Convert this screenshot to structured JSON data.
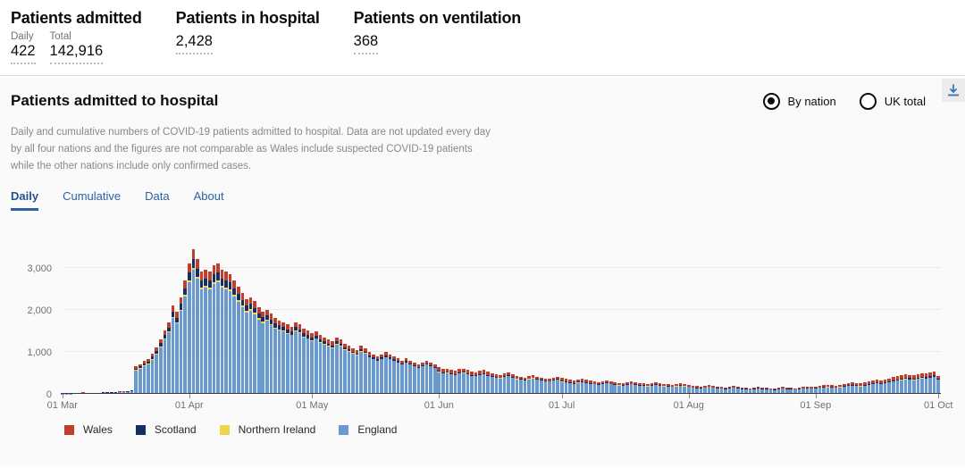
{
  "stats": {
    "admitted": {
      "title": "Patients admitted",
      "daily_label": "Daily",
      "total_label": "Total",
      "daily_value": "422",
      "total_value": "142,916"
    },
    "in_hospital": {
      "title": "Patients in hospital",
      "value": "2,428"
    },
    "ventilation": {
      "title": "Patients on ventilation",
      "value": "368"
    }
  },
  "panel": {
    "title": "Patients admitted to hospital",
    "radio_options": [
      {
        "label": "By nation",
        "selected": true
      },
      {
        "label": "UK total",
        "selected": false
      }
    ],
    "description": "Daily and cumulative numbers of COVID-19 patients admitted to hospital. Data are not updated every day by all four nations and the figures are not comparable as Wales include suspected COVID-19 patients while the other nations include only confirmed cases.",
    "tabs": [
      {
        "label": "Daily",
        "active": true
      },
      {
        "label": "Cumulative",
        "active": false
      },
      {
        "label": "Data",
        "active": false
      },
      {
        "label": "About",
        "active": false
      }
    ],
    "download_icon": "download-icon"
  },
  "colors": {
    "accent_blue": "#2c62a5",
    "download_blue": "#3b74ba",
    "england": "#6A99D0",
    "northern_ireland": "#F2D24B",
    "scotland": "#152F63",
    "wales": "#C13E2B"
  },
  "chart_data": {
    "type": "bar",
    "stacked": true,
    "title": "Daily COVID-19 patients admitted to hospital, by nation",
    "x_start": "01 Mar",
    "x_end": "01 Oct",
    "frequency": "daily",
    "grid": "horizontal",
    "legend_position": "bottom",
    "ylim": [
      0,
      3500
    ],
    "y_ticks": [
      {
        "label": "0",
        "value": 0
      },
      {
        "label": "1,000",
        "value": 1000
      },
      {
        "label": "2,000",
        "value": 2000
      },
      {
        "label": "3,000",
        "value": 3000
      }
    ],
    "x_ticks": [
      {
        "label": "01 Mar",
        "day": 0
      },
      {
        "label": "01 Apr",
        "day": 31
      },
      {
        "label": "01 May",
        "day": 61
      },
      {
        "label": "01 Jun",
        "day": 92
      },
      {
        "label": "01 Jul",
        "day": 122
      },
      {
        "label": "01 Aug",
        "day": 153
      },
      {
        "label": "01 Sep",
        "day": 184
      },
      {
        "label": "01 Oct",
        "day": 214
      }
    ],
    "legend_order": [
      3,
      2,
      1,
      0
    ],
    "series": [
      {
        "name": "England",
        "color": "#6A99D0",
        "values": [
          3,
          5,
          6,
          15,
          18,
          21,
          18,
          12,
          15,
          18,
          25,
          27,
          25,
          30,
          34,
          37,
          43,
          54,
          555,
          600,
          665,
          700,
          815,
          940,
          1110,
          1285,
          1455,
          1800,
          1670,
          1965,
          2310,
          2655,
          2945,
          2735,
          2480,
          2525,
          2485,
          2610,
          2655,
          2525,
          2485,
          2445,
          2315,
          2190,
          2060,
          1935,
          1980,
          1895,
          1765,
          1685,
          1730,
          1640,
          1555,
          1515,
          1475,
          1430,
          1390,
          1475,
          1435,
          1345,
          1305,
          1260,
          1305,
          1220,
          1175,
          1130,
          1090,
          1175,
          1130,
          1045,
          1000,
          955,
          915,
          1000,
          955,
          870,
          825,
          785,
          825,
          870,
          825,
          785,
          740,
          695,
          740,
          695,
          650,
          610,
          650,
          695,
          650,
          610,
          520,
          480,
          495,
          465,
          450,
          480,
          495,
          465,
          430,
          415,
          450,
          465,
          430,
          400,
          385,
          370,
          400,
          415,
          385,
          350,
          335,
          320,
          350,
          370,
          335,
          320,
          305,
          290,
          320,
          335,
          285,
          270,
          255,
          240,
          265,
          280,
          255,
          240,
          225,
          220,
          235,
          250,
          225,
          210,
          200,
          195,
          220,
          225,
          210,
          195,
          190,
          180,
          195,
          210,
          195,
          180,
          175,
          165,
          180,
          195,
          180,
          160,
          145,
          135,
          130,
          145,
          160,
          145,
          130,
          120,
          115,
          130,
          145,
          130,
          115,
          108,
          100,
          115,
          130,
          115,
          108,
          100,
          93,
          108,
          122,
          115,
          108,
          100,
          108,
          122,
          130,
          122,
          130,
          140,
          148,
          155,
          148,
          140,
          155,
          172,
          188,
          195,
          188,
          180,
          195,
          212,
          228,
          245,
          235,
          252,
          268,
          292,
          310,
          328,
          345,
          335,
          328,
          352,
          370,
          360,
          378,
          395,
          330
        ]
      },
      {
        "name": "Northern Ireland",
        "color": "#F2D24B",
        "values": [
          0,
          0,
          0,
          1,
          1,
          1,
          1,
          1,
          1,
          1,
          1,
          2,
          1,
          2,
          2,
          2,
          3,
          4,
          10,
          10,
          12,
          12,
          14,
          17,
          20,
          22,
          26,
          32,
          29,
          35,
          40,
          45,
          50,
          48,
          42,
          44,
          42,
          45,
          46,
          44,
          42,
          40,
          38,
          36,
          34,
          32,
          32,
          30,
          28,
          26,
          27,
          25,
          24,
          23,
          22,
          21,
          20,
          21,
          20,
          19,
          18,
          16,
          17,
          15,
          15,
          14,
          13,
          15,
          14,
          13,
          12,
          11,
          10,
          11,
          11,
          10,
          9,
          9,
          9,
          10,
          9,
          9,
          8,
          8,
          8,
          8,
          7,
          7,
          7,
          8,
          7,
          7,
          6,
          5,
          6,
          5,
          5,
          5,
          6,
          5,
          5,
          4,
          5,
          5,
          5,
          4,
          4,
          4,
          4,
          5,
          4,
          4,
          3,
          3,
          4,
          4,
          3,
          3,
          3,
          3,
          3,
          4,
          4,
          4,
          3,
          3,
          4,
          4,
          3,
          3,
          3,
          3,
          3,
          4,
          3,
          3,
          3,
          3,
          3,
          3,
          3,
          3,
          2,
          2,
          3,
          3,
          3,
          2,
          2,
          2,
          2,
          3,
          2,
          3,
          3,
          2,
          2,
          3,
          3,
          3,
          2,
          2,
          2,
          2,
          3,
          2,
          2,
          2,
          2,
          2,
          3,
          2,
          2,
          2,
          2,
          2,
          3,
          2,
          2,
          2,
          2,
          3,
          3,
          3,
          4,
          4,
          4,
          5,
          4,
          4,
          5,
          5,
          6,
          6,
          6,
          5,
          6,
          6,
          7,
          7,
          7,
          8,
          8,
          9,
          9,
          10,
          10,
          10,
          10,
          11,
          11,
          11,
          11,
          12,
          10
        ]
      },
      {
        "name": "Scotland",
        "color": "#152F63",
        "values": [
          1,
          1,
          2,
          5,
          6,
          7,
          6,
          4,
          5,
          6,
          8,
          9,
          8,
          10,
          11,
          12,
          14,
          18,
          40,
          42,
          47,
          50,
          57,
          66,
          78,
          90,
          100,
          125,
          115,
          140,
          160,
          185,
          205,
          190,
          175,
          175,
          170,
          180,
          185,
          175,
          170,
          165,
          155,
          145,
          135,
          125,
          130,
          120,
          110,
          105,
          105,
          100,
          95,
          90,
          85,
          85,
          80,
          85,
          80,
          75,
          70,
          60,
          62,
          58,
          55,
          52,
          50,
          54,
          52,
          48,
          45,
          42,
          40,
          44,
          42,
          38,
          35,
          32,
          34,
          36,
          34,
          32,
          30,
          28,
          30,
          28,
          25,
          22,
          24,
          26,
          24,
          22,
          25,
          23,
          24,
          22,
          21,
          23,
          24,
          22,
          20,
          19,
          21,
          22,
          20,
          18,
          17,
          16,
          18,
          19,
          17,
          15,
          14,
          13,
          15,
          16,
          14,
          13,
          12,
          11,
          13,
          14,
          20,
          19,
          18,
          17,
          18,
          19,
          18,
          17,
          16,
          15,
          16,
          17,
          16,
          15,
          14,
          14,
          15,
          16,
          15,
          14,
          13,
          13,
          14,
          15,
          14,
          13,
          12,
          12,
          13,
          14,
          13,
          12,
          11,
          11,
          10,
          11,
          12,
          11,
          10,
          10,
          9,
          10,
          11,
          10,
          9,
          8,
          8,
          9,
          10,
          9,
          8,
          8,
          7,
          8,
          10,
          9,
          8,
          8,
          8,
          10,
          10,
          10,
          12,
          12,
          13,
          14,
          13,
          12,
          14,
          15,
          16,
          17,
          16,
          16,
          17,
          18,
          20,
          21,
          20,
          22,
          23,
          25,
          26,
          28,
          29,
          28,
          28,
          30,
          31,
          30,
          32,
          33,
          27
        ]
      },
      {
        "name": "Wales",
        "color": "#C13E2B",
        "values": [
          1,
          2,
          2,
          4,
          5,
          6,
          5,
          3,
          4,
          5,
          6,
          7,
          6,
          8,
          8,
          9,
          10,
          14,
          45,
          50,
          55,
          58,
          65,
          75,
          90,
          105,
          120,
          145,
          135,
          160,
          190,
          215,
          240,
          225,
          205,
          205,
          205,
          215,
          215,
          205,
          205,
          200,
          190,
          180,
          170,
          160,
          160,
          155,
          145,
          135,
          140,
          135,
          125,
          120,
          120,
          115,
          110,
          120,
          115,
          110,
          105,
          105,
          110,
          100,
          100,
          95,
          90,
          100,
          95,
          90,
          85,
          80,
          80,
          85,
          80,
          75,
          70,
          70,
          70,
          75,
          70,
          68,
          65,
          60,
          65,
          60,
          58,
          55,
          58,
          62,
          58,
          55,
          85,
          78,
          80,
          75,
          73,
          78,
          80,
          75,
          70,
          68,
          73,
          75,
          70,
          65,
          62,
          60,
          65,
          68,
          62,
          57,
          55,
          52,
          57,
          60,
          55,
          52,
          49,
          47,
          52,
          55,
          65,
          60,
          58,
          55,
          60,
          63,
          58,
          55,
          50,
          49,
          53,
          56,
          50,
          48,
          46,
          44,
          49,
          51,
          48,
          44,
          42,
          41,
          44,
          48,
          44,
          41,
          39,
          37,
          41,
          44,
          41,
          44,
          40,
          38,
          36,
          40,
          44,
          40,
          36,
          34,
          32,
          36,
          40,
          36,
          32,
          30,
          28,
          32,
          36,
          32,
          30,
          28,
          26,
          30,
          34,
          32,
          30,
          28,
          30,
          34,
          36,
          34,
          34,
          36,
          38,
          40,
          38,
          36,
          40,
          43,
          47,
          49,
          47,
          45,
          49,
          52,
          56,
          60,
          58,
          62,
          65,
          70,
          74,
          78,
          82,
          80,
          78,
          83,
          87,
          85,
          89,
          93,
          55
        ]
      }
    ]
  }
}
